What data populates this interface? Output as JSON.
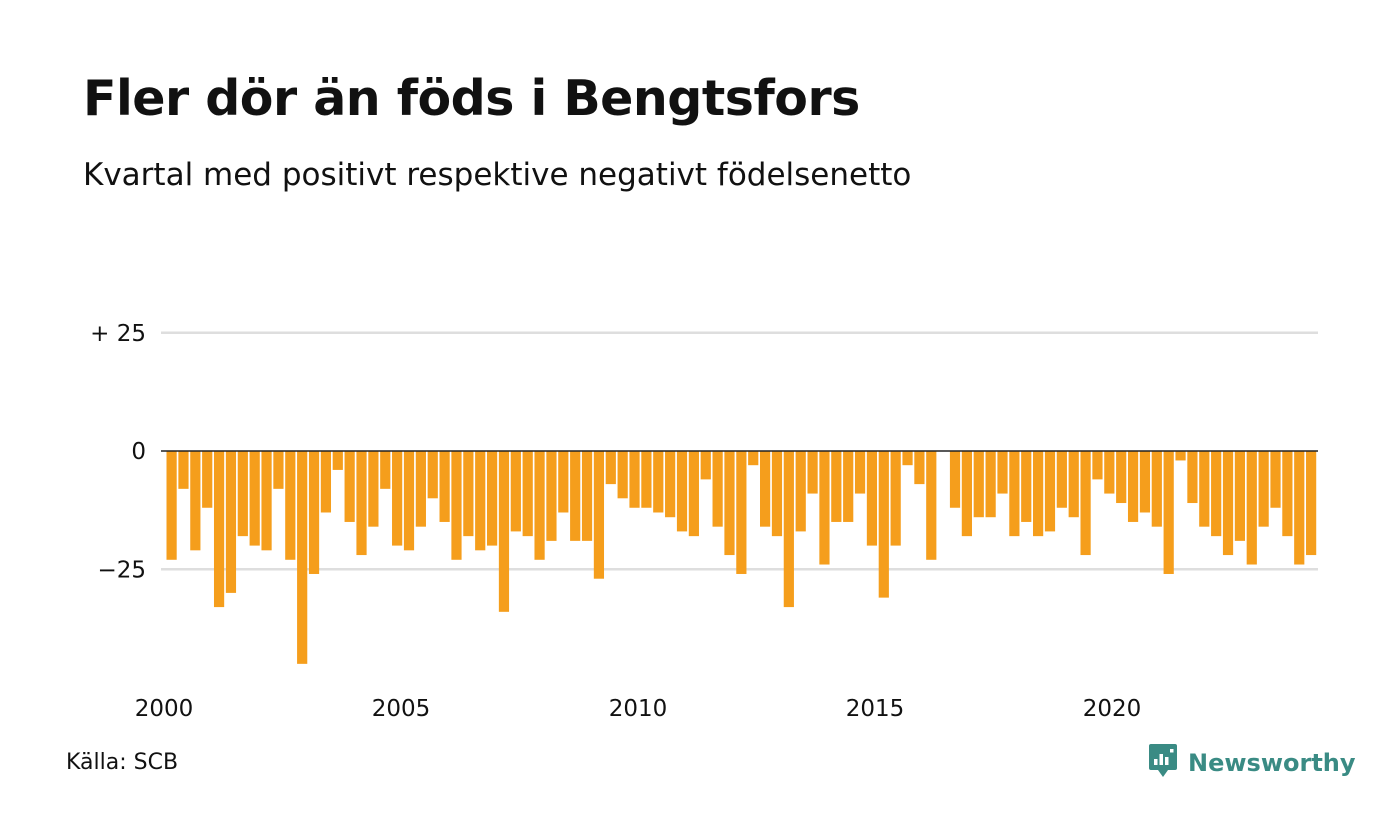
{
  "header": {
    "title": "Fler dör än föds i Bengtsfors",
    "subtitle": "Kvartal med positivt respektive negativt födelsenetto"
  },
  "footer": {
    "source": "Källa: SCB",
    "brand": "Newsworthy"
  },
  "colors": {
    "bar": "#f59e1c",
    "gridline": "#dedede",
    "zero_line": "#222222",
    "brand": "#3a8b84",
    "text": "#111111"
  },
  "icons": {
    "brand": "newsworthy-logo-icon"
  },
  "chart_data": {
    "type": "bar",
    "title": "Fler dör än föds i Bengtsfors",
    "subtitle": "Kvartal med positivt respektive negativt födelsenetto",
    "xlabel": "",
    "ylabel": "",
    "ylim": [
      -46,
      34
    ],
    "y_ticks": [
      {
        "value": 25,
        "label": "+ 25"
      },
      {
        "value": 0,
        "label": "0"
      },
      {
        "value": -25,
        "label": "−25"
      }
    ],
    "x_ticks": [
      "2000",
      "2005",
      "2010",
      "2015",
      "2020"
    ],
    "first_period": "2000 Q1",
    "frequency": "quarterly",
    "grid": true,
    "legend": "none",
    "series": [
      {
        "values": [
          -23,
          -8,
          -21,
          -12,
          -33,
          -30,
          -18,
          -20,
          -21,
          -8,
          -23,
          -45,
          -26,
          -13,
          -4,
          -15,
          -22,
          -16,
          -8,
          -20,
          -21,
          -16,
          -10,
          -15,
          -23,
          -18,
          -21,
          -20,
          -34,
          -17,
          -18,
          -23,
          -19,
          -13,
          -19,
          -19,
          -27,
          -7,
          -10,
          -12,
          -12,
          -13,
          -14,
          -17,
          -18,
          -6,
          -16,
          -22,
          -26,
          -3,
          -16,
          -18,
          -33,
          -17,
          -9,
          -24,
          -15,
          -15,
          -9,
          -20,
          -31,
          -20,
          -3,
          -7,
          -23,
          0,
          -12,
          -18,
          -14,
          -14,
          -9,
          -18,
          -15,
          -18,
          -17,
          -12,
          -14,
          -22,
          -6,
          -9,
          -11,
          -15,
          -13,
          -16,
          -26,
          -2,
          -11,
          -16,
          -18,
          -22,
          -19,
          -24,
          -16,
          -12,
          -18,
          -24,
          -22
        ]
      }
    ]
  }
}
